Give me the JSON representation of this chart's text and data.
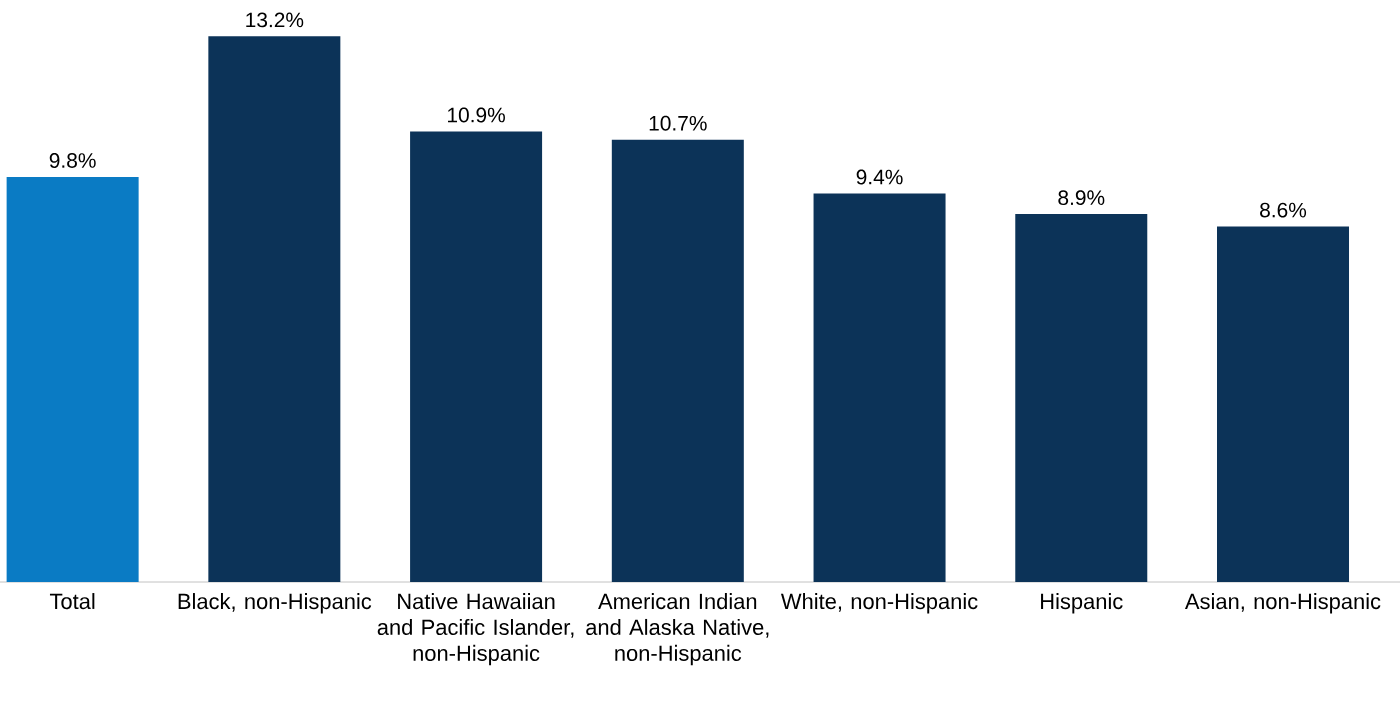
{
  "chart_data": {
    "type": "bar",
    "categories": [
      "Total",
      "Black, non-Hispanic",
      "Native Hawaiian and Pacific Islander, non-Hispanic",
      "American Indian and Alaska Native, non-Hispanic",
      "White, non-Hispanic",
      "Hispanic",
      "Asian, non-Hispanic"
    ],
    "values": [
      9.8,
      13.2,
      10.9,
      10.7,
      9.4,
      8.9,
      8.6
    ],
    "value_labels": [
      "9.8%",
      "13.2%",
      "10.9%",
      "10.7%",
      "9.4%",
      "8.9%",
      "8.6%"
    ],
    "colors": [
      "#0a7bc4",
      "#0c3358",
      "#0c3358",
      "#0c3358",
      "#0c3358",
      "#0c3358",
      "#0c3358"
    ]
  }
}
